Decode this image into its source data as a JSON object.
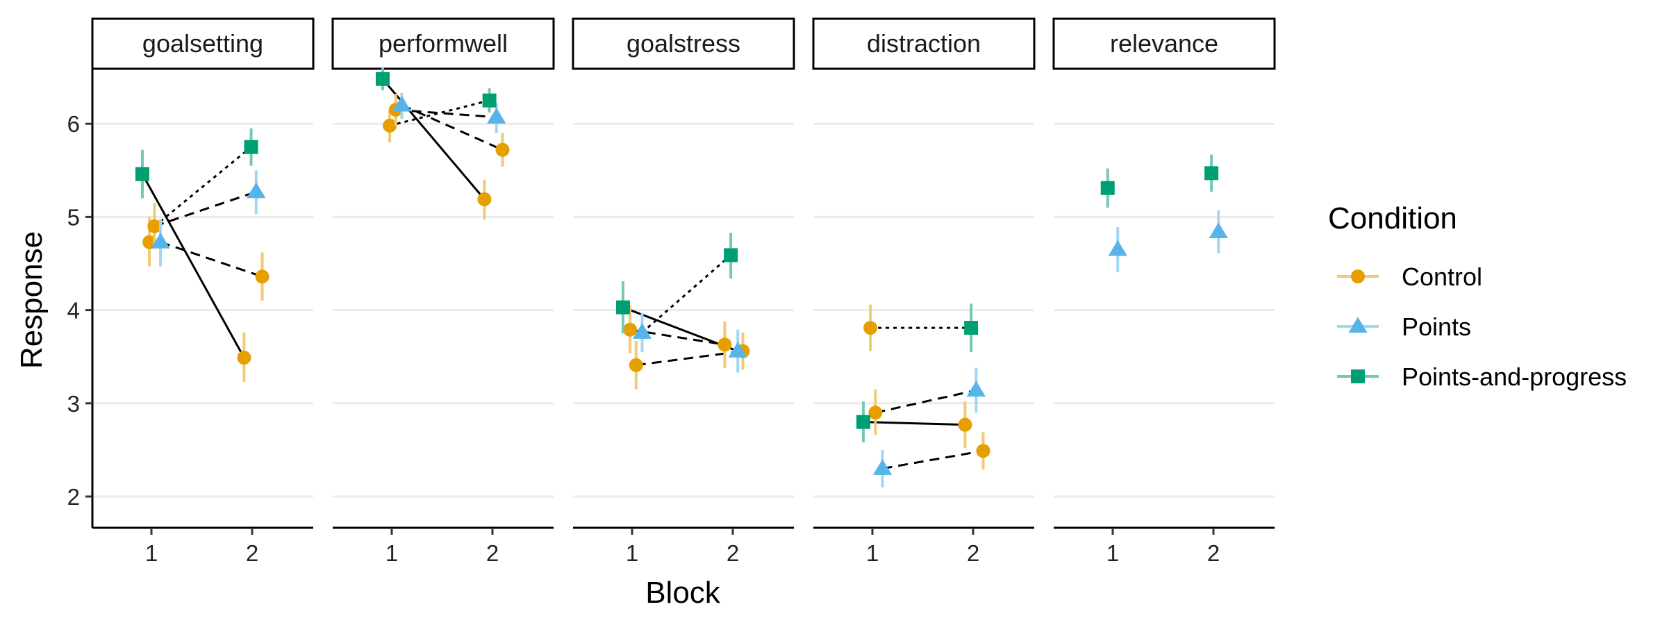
{
  "chart_data": {
    "type": "scatter",
    "title": "",
    "xlabel": "Block",
    "ylabel": "Response",
    "ylim": [
      1.95,
      6.65
    ],
    "yticks": [
      2,
      3,
      4,
      5,
      6
    ],
    "xticks": [
      "1",
      "2"
    ],
    "grid": "horizontal major",
    "facets": [
      "goalsetting",
      "performwell",
      "goalstress",
      "distraction",
      "relevance"
    ],
    "legend": {
      "title": "Condition",
      "position": "right",
      "entries": [
        {
          "name": "Control",
          "color": "#E69F00",
          "shape": "circle"
        },
        {
          "name": "Points",
          "color": "#56B4E9",
          "shape": "triangle"
        },
        {
          "name": "Points-and-progress",
          "color": "#009E73",
          "shape": "square"
        }
      ]
    },
    "points": {
      "goalsetting": {
        "Control": [
          {
            "block": 1,
            "dx": -0.02,
            "y": 4.73,
            "lo": 4.47,
            "hi": 5.0
          },
          {
            "block": 1,
            "dx": 0.03,
            "y": 4.9,
            "lo": 4.66,
            "hi": 5.15
          },
          {
            "block": 2,
            "dx": -0.08,
            "y": 3.49,
            "lo": 3.23,
            "hi": 3.76
          },
          {
            "block": 2,
            "dx": 0.1,
            "y": 4.36,
            "lo": 4.1,
            "hi": 4.62
          }
        ],
        "Points": [
          {
            "block": 1,
            "dx": 0.09,
            "y": 4.73,
            "lo": 4.47,
            "hi": 4.98
          },
          {
            "block": 2,
            "dx": 0.04,
            "y": 5.27,
            "lo": 5.03,
            "hi": 5.5
          }
        ],
        "Points-and-progress": [
          {
            "block": 1,
            "dx": -0.09,
            "y": 5.46,
            "lo": 5.2,
            "hi": 5.72
          },
          {
            "block": 2,
            "dx": -0.01,
            "y": 5.75,
            "lo": 5.55,
            "hi": 5.95
          }
        ]
      },
      "performwell": {
        "Control": [
          {
            "block": 1,
            "dx": -0.02,
            "y": 5.98,
            "lo": 5.8,
            "hi": 6.15
          },
          {
            "block": 1,
            "dx": 0.04,
            "y": 6.15,
            "lo": 5.98,
            "hi": 6.32
          },
          {
            "block": 2,
            "dx": -0.08,
            "y": 5.19,
            "lo": 4.97,
            "hi": 5.4
          },
          {
            "block": 2,
            "dx": 0.1,
            "y": 5.72,
            "lo": 5.54,
            "hi": 5.9
          }
        ],
        "Points": [
          {
            "block": 1,
            "dx": 0.1,
            "y": 6.2,
            "lo": 6.05,
            "hi": 6.33
          },
          {
            "block": 2,
            "dx": 0.04,
            "y": 6.07,
            "lo": 5.9,
            "hi": 6.22
          }
        ],
        "Points-and-progress": [
          {
            "block": 1,
            "dx": -0.09,
            "y": 6.48,
            "lo": 6.36,
            "hi": 6.6
          },
          {
            "block": 2,
            "dx": -0.03,
            "y": 6.25,
            "lo": 6.12,
            "hi": 6.38
          }
        ]
      },
      "goalstress": {
        "Control": [
          {
            "block": 1,
            "dx": -0.02,
            "y": 3.79,
            "lo": 3.54,
            "hi": 4.05
          },
          {
            "block": 1,
            "dx": 0.04,
            "y": 3.41,
            "lo": 3.15,
            "hi": 3.67
          },
          {
            "block": 2,
            "dx": -0.08,
            "y": 3.63,
            "lo": 3.38,
            "hi": 3.88
          },
          {
            "block": 2,
            "dx": 0.1,
            "y": 3.56,
            "lo": 3.36,
            "hi": 3.76
          }
        ],
        "Points": [
          {
            "block": 1,
            "dx": 0.1,
            "y": 3.76,
            "lo": 3.55,
            "hi": 3.97
          },
          {
            "block": 2,
            "dx": 0.05,
            "y": 3.56,
            "lo": 3.33,
            "hi": 3.79
          }
        ],
        "Points-and-progress": [
          {
            "block": 1,
            "dx": -0.09,
            "y": 4.03,
            "lo": 3.75,
            "hi": 4.31
          },
          {
            "block": 2,
            "dx": -0.02,
            "y": 4.59,
            "lo": 4.34,
            "hi": 4.83
          }
        ]
      },
      "distraction": {
        "Control": [
          {
            "block": 1,
            "dx": -0.02,
            "y": 3.81,
            "lo": 3.56,
            "hi": 4.06
          },
          {
            "block": 1,
            "dx": 0.03,
            "y": 2.9,
            "lo": 2.66,
            "hi": 3.15
          },
          {
            "block": 2,
            "dx": -0.08,
            "y": 2.77,
            "lo": 2.52,
            "hi": 3.02
          },
          {
            "block": 2,
            "dx": 0.1,
            "y": 2.49,
            "lo": 2.29,
            "hi": 2.69
          }
        ],
        "Points": [
          {
            "block": 1,
            "dx": 0.1,
            "y": 2.3,
            "lo": 2.1,
            "hi": 2.5
          },
          {
            "block": 2,
            "dx": 0.03,
            "y": 3.14,
            "lo": 2.9,
            "hi": 3.38
          }
        ],
        "Points-and-progress": [
          {
            "block": 1,
            "dx": -0.09,
            "y": 2.8,
            "lo": 2.58,
            "hi": 3.02
          },
          {
            "block": 2,
            "dx": -0.02,
            "y": 3.81,
            "lo": 3.55,
            "hi": 4.07
          }
        ]
      },
      "relevance": {
        "Points": [
          {
            "block": 1,
            "dx": 0.05,
            "y": 4.65,
            "lo": 4.41,
            "hi": 4.89
          },
          {
            "block": 2,
            "dx": 0.05,
            "y": 4.84,
            "lo": 4.61,
            "hi": 5.07
          }
        ],
        "Points-and-progress": [
          {
            "block": 1,
            "dx": -0.05,
            "y": 5.31,
            "lo": 5.1,
            "hi": 5.52
          },
          {
            "block": 2,
            "dx": -0.02,
            "y": 5.47,
            "lo": 5.27,
            "hi": 5.67
          }
        ]
      }
    },
    "connectors": [
      {
        "facet": "goalsetting",
        "style": "solid",
        "from": [
          -0.09,
          5.46
        ],
        "to": [
          0.92,
          3.49
        ]
      },
      {
        "facet": "goalsetting",
        "style": "dashed",
        "from": [
          0.09,
          4.73
        ],
        "to": [
          1.1,
          4.36
        ]
      },
      {
        "facet": "goalsetting",
        "style": "dotted",
        "from": [
          0.03,
          4.9
        ],
        "to": [
          0.99,
          5.75
        ]
      },
      {
        "facet": "goalsetting",
        "style": "dashed",
        "from": [
          0.03,
          4.9
        ],
        "to": [
          1.04,
          5.27
        ]
      },
      {
        "facet": "performwell",
        "style": "solid",
        "from": [
          -0.09,
          6.48
        ],
        "to": [
          0.92,
          5.19
        ]
      },
      {
        "facet": "performwell",
        "style": "dashed",
        "from": [
          0.1,
          6.2
        ],
        "to": [
          1.1,
          5.72
        ]
      },
      {
        "facet": "performwell",
        "style": "dotted",
        "from": [
          -0.02,
          5.98
        ],
        "to": [
          0.97,
          6.25
        ]
      },
      {
        "facet": "performwell",
        "style": "dashed",
        "from": [
          0.04,
          6.15
        ],
        "to": [
          1.04,
          6.07
        ]
      },
      {
        "facet": "goalstress",
        "style": "solid",
        "from": [
          -0.09,
          4.03
        ],
        "to": [
          1.05,
          3.56
        ]
      },
      {
        "facet": "goalstress",
        "style": "dashed",
        "from": [
          -0.02,
          3.79
        ],
        "to": [
          0.92,
          3.63
        ]
      },
      {
        "facet": "goalstress",
        "style": "dotted",
        "from": [
          0.1,
          3.76
        ],
        "to": [
          0.98,
          4.59
        ]
      },
      {
        "facet": "goalstress",
        "style": "dashed",
        "from": [
          0.04,
          3.41
        ],
        "to": [
          1.1,
          3.56
        ]
      },
      {
        "facet": "distraction",
        "style": "dotted",
        "from": [
          -0.02,
          3.81
        ],
        "to": [
          0.98,
          3.81
        ]
      },
      {
        "facet": "distraction",
        "style": "dashed",
        "from": [
          0.03,
          2.9
        ],
        "to": [
          1.03,
          3.14
        ]
      },
      {
        "facet": "distraction",
        "style": "solid",
        "from": [
          -0.09,
          2.8
        ],
        "to": [
          0.92,
          2.77
        ]
      },
      {
        "facet": "distraction",
        "style": "dashed",
        "from": [
          0.1,
          2.3
        ],
        "to": [
          1.1,
          2.49
        ]
      }
    ]
  }
}
